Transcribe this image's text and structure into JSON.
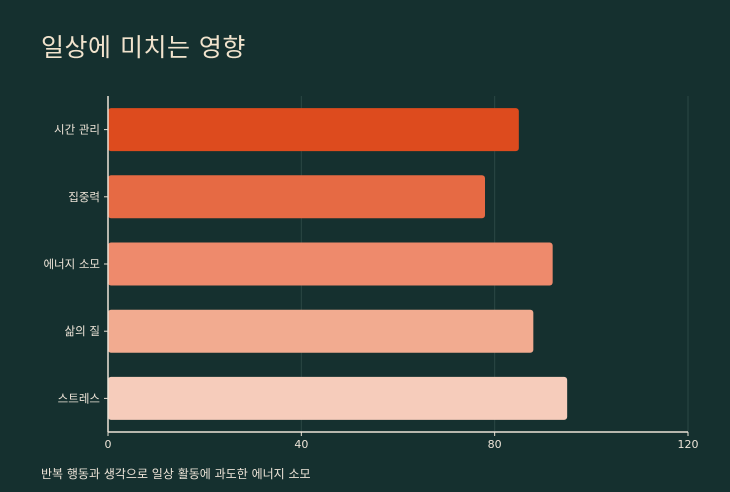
{
  "title": "일상에 미치는 영향",
  "caption": "반복 행동과 생각으로 일상 활동에 과도한 에너지 소모",
  "chart_data": {
    "type": "bar",
    "orientation": "horizontal",
    "categories": [
      "시간 관리",
      "집중력",
      "에너지 소모",
      "삶의 질",
      "스트레스"
    ],
    "values": [
      85,
      78,
      92,
      88,
      95
    ],
    "colors": [
      "#dd4b1e",
      "#e66a44",
      "#ee8a6c",
      "#f2ab90",
      "#f6ccbb"
    ],
    "xlim": [
      0,
      120
    ],
    "xticks": [
      0,
      40,
      80,
      120
    ],
    "grid": true,
    "legend": "none"
  }
}
